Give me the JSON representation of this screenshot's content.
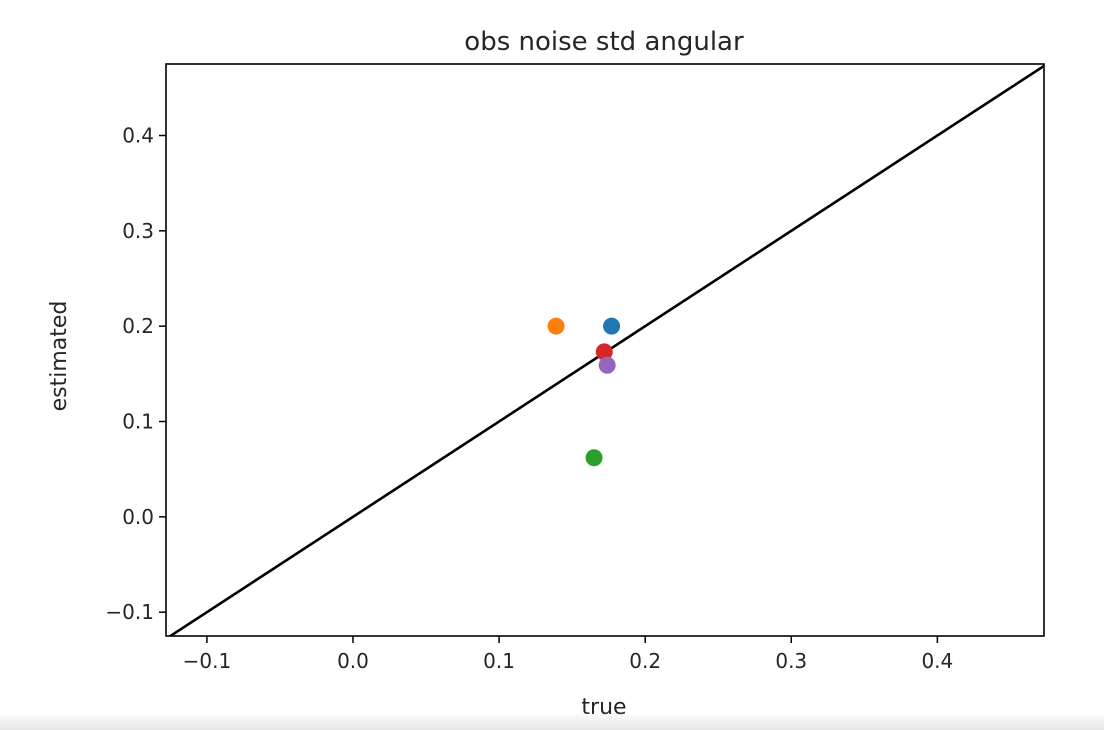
{
  "chart_data": {
    "type": "scatter",
    "title": "obs noise std angular",
    "xlabel": "true",
    "ylabel": "estimated",
    "xlim": [
      -0.128,
      0.473
    ],
    "ylim": [
      -0.125,
      0.475
    ],
    "x_ticks": [
      -0.1,
      0.0,
      0.1,
      0.2,
      0.3,
      0.4
    ],
    "x_tick_labels": [
      "−0.1",
      "0.0",
      "0.1",
      "0.2",
      "0.3",
      "0.4"
    ],
    "y_ticks": [
      -0.1,
      0.0,
      0.1,
      0.2,
      0.3,
      0.4
    ],
    "y_tick_labels": [
      "−0.1",
      "0.0",
      "0.1",
      "0.2",
      "0.3",
      "0.4"
    ],
    "grid": false,
    "reference_line": {
      "x": [
        -0.128,
        0.473
      ],
      "y": [
        -0.128,
        0.473
      ],
      "color": "#000000"
    },
    "points": [
      {
        "x": 0.177,
        "y": 0.2,
        "color": "#1f77b4"
      },
      {
        "x": 0.139,
        "y": 0.2,
        "color": "#ff7f0e"
      },
      {
        "x": 0.165,
        "y": 0.062,
        "color": "#2ca02c"
      },
      {
        "x": 0.172,
        "y": 0.173,
        "color": "#d62728"
      },
      {
        "x": 0.174,
        "y": 0.159,
        "color": "#9467bd"
      }
    ]
  }
}
